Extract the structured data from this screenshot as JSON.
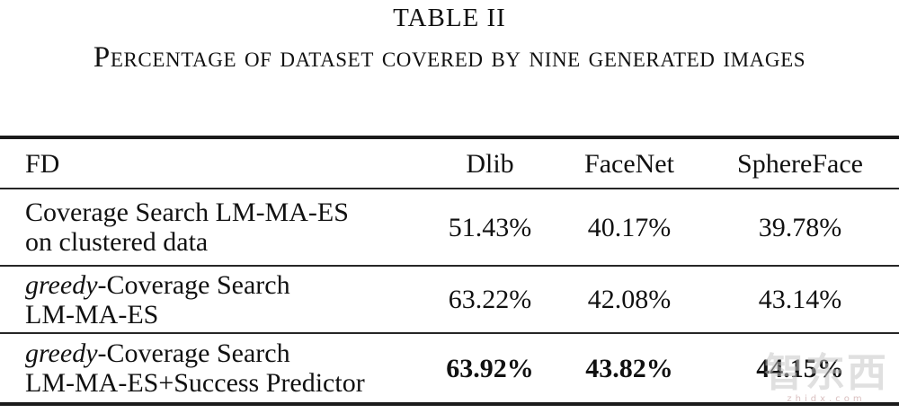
{
  "title": "TABLE II",
  "caption": "Percentage of dataset covered by nine generated images",
  "table": {
    "header": {
      "fd": "FD",
      "columns": [
        "Dlib",
        "FaceNet",
        "SphereFace"
      ]
    },
    "rows": [
      {
        "label_italic": "",
        "label_line1": "Coverage Search LM-MA-ES",
        "label_line2": "on clustered data",
        "values": [
          "51.43%",
          "40.17%",
          "39.78%"
        ]
      },
      {
        "label_italic": "greedy",
        "label_line1": "-Coverage Search",
        "label_line2": "LM-MA-ES",
        "values": [
          "63.22%",
          "42.08%",
          "43.14%"
        ]
      },
      {
        "label_italic": "greedy",
        "label_line1": "-Coverage Search",
        "label_line2": "LM-MA-ES+Success Predictor",
        "values": [
          "63.92%",
          "43.82%",
          "44.15%"
        ]
      }
    ]
  },
  "watermark": {
    "text": "智东西",
    "subtext": "zhidx.com"
  },
  "colors": {
    "text": "#111111",
    "rule": "#1b1b1b",
    "watermark": "#c7c7c7"
  }
}
